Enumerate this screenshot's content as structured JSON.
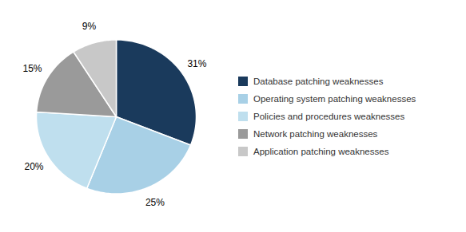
{
  "chart_data": {
    "type": "pie",
    "categories": [
      "Database patching weaknesses",
      "Operating system patching weaknesses",
      "Policies and procedures weaknesses",
      "Network patching weaknesses",
      "Application patching weaknesses"
    ],
    "values": [
      31,
      25,
      20,
      15,
      9
    ],
    "value_labels": [
      "31%",
      "25%",
      "20%",
      "15%",
      "9%"
    ],
    "colors": [
      "#1a3a5c",
      "#a8d0e6",
      "#bfdfee",
      "#9a9a9a",
      "#c8c8c8"
    ],
    "data_labels": true,
    "legend": "right"
  }
}
